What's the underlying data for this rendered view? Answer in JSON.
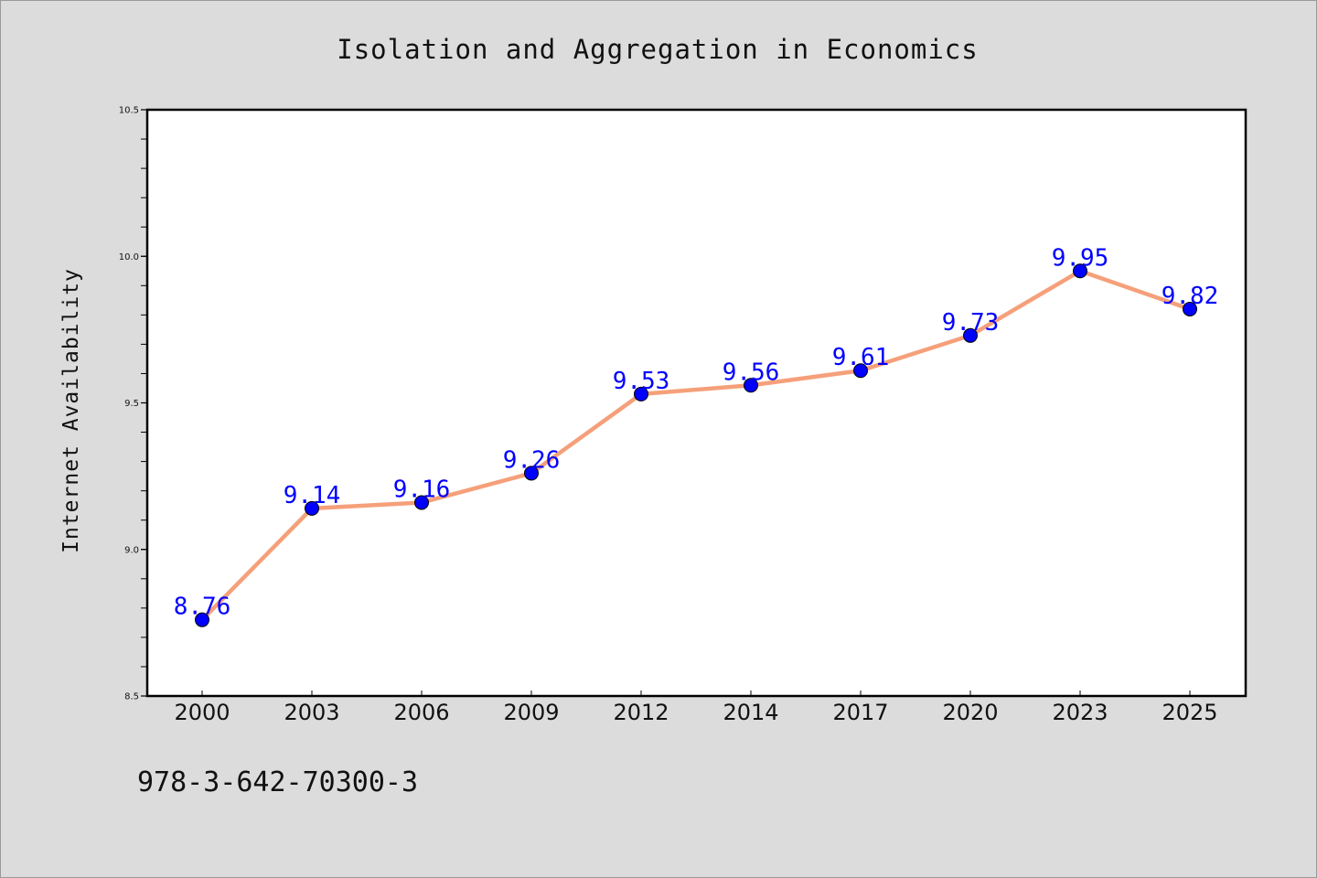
{
  "chart_data": {
    "type": "line",
    "title": "Isolation and Aggregation in Economics",
    "xlabel": "",
    "ylabel": "Internet Availability",
    "categories": [
      "2000",
      "2003",
      "2006",
      "2009",
      "2012",
      "2014",
      "2017",
      "2020",
      "2023",
      "2025"
    ],
    "values": [
      8.76,
      9.14,
      9.16,
      9.26,
      9.53,
      9.56,
      9.61,
      9.73,
      9.95,
      9.82
    ],
    "data_labels": [
      "8.76",
      "9.14",
      "9.16",
      "9.26",
      "9.53",
      "9.56",
      "9.61",
      "9.73",
      "9.95",
      "9.82"
    ],
    "ylim": [
      8.5,
      10.5
    ],
    "yticks": [
      "8.5",
      "9.0",
      "9.5",
      "10.0",
      "10.5"
    ],
    "grid": false,
    "line_color": "#f5a07a",
    "marker_color": "#0000ff",
    "label_color": "#0000ff",
    "background_color": "#dcdcdc",
    "plot_background": "#ffffff"
  },
  "footer": {
    "isbn": "978-3-642-70300-3"
  }
}
